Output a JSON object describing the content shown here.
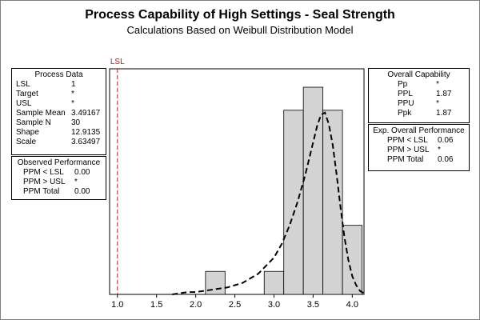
{
  "title": "Process Capability of High Settings - Seal Strength",
  "subtitle": "Calculations Based on Weibull Distribution Model",
  "process_data": {
    "title": "Process Data",
    "rows": [
      {
        "label": "LSL",
        "value": "1"
      },
      {
        "label": "Target",
        "value": "*"
      },
      {
        "label": "USL",
        "value": "*"
      },
      {
        "label": "Sample Mean",
        "value": "3.49167"
      },
      {
        "label": "Sample N",
        "value": "30"
      },
      {
        "label": "Shape",
        "value": "12.9135"
      },
      {
        "label": "Scale",
        "value": "3.63497"
      }
    ]
  },
  "observed_performance": {
    "title": "Observed Performance",
    "rows": [
      {
        "label": "PPM < LSL",
        "value": "0.00"
      },
      {
        "label": "PPM > USL",
        "value": "*"
      },
      {
        "label": "PPM Total",
        "value": "0.00"
      }
    ]
  },
  "overall_capability": {
    "title": "Overall Capability",
    "rows": [
      {
        "label": "Pp",
        "value": "*"
      },
      {
        "label": "PPL",
        "value": "1.87"
      },
      {
        "label": "PPU",
        "value": "*"
      },
      {
        "label": "Ppk",
        "value": "1.87"
      }
    ]
  },
  "exp_overall_performance": {
    "title": "Exp. Overall Performance",
    "rows": [
      {
        "label": "PPM < LSL",
        "value": "0.06"
      },
      {
        "label": "PPM > USL",
        "value": "*"
      },
      {
        "label": "PPM Total",
        "value": "0.06"
      }
    ]
  },
  "chart_data": {
    "type": "bar",
    "title": "Process Capability of High Settings - Seal Strength",
    "subtitle": "Calculations Based on Weibull Distribution Model",
    "xlim": [
      0.9,
      4.15
    ],
    "ylim": [
      0,
      9.8
    ],
    "xticks": [
      "1.0",
      "1.5",
      "2.0",
      "2.5",
      "3.0",
      "3.5",
      "4.0"
    ],
    "tick_values": [
      1.0,
      1.5,
      2.0,
      2.5,
      3.0,
      3.5,
      4.0
    ],
    "bin_width": 0.25,
    "histogram": [
      {
        "x": 2.25,
        "count": 1
      },
      {
        "x": 3.0,
        "count": 1
      },
      {
        "x": 3.25,
        "count": 8
      },
      {
        "x": 3.5,
        "count": 9
      },
      {
        "x": 3.75,
        "count": 8
      },
      {
        "x": 4.0,
        "count": 3
      }
    ],
    "fitted_curve": {
      "distribution": "Weibull",
      "shape": 12.9135,
      "scale": 3.63497,
      "line_style": "dashed",
      "points": [
        [
          1.7,
          0.0
        ],
        [
          1.9,
          0.1
        ],
        [
          2.0,
          0.1
        ],
        [
          2.2,
          0.2
        ],
        [
          2.4,
          0.3
        ],
        [
          2.6,
          0.5
        ],
        [
          2.8,
          0.9
        ],
        [
          3.0,
          1.6
        ],
        [
          3.1,
          2.2
        ],
        [
          3.2,
          3.0
        ],
        [
          3.3,
          4.0
        ],
        [
          3.4,
          5.2
        ],
        [
          3.5,
          6.6
        ],
        [
          3.55,
          7.3
        ],
        [
          3.6,
          7.8
        ],
        [
          3.65,
          7.9
        ],
        [
          3.7,
          7.4
        ],
        [
          3.75,
          6.5
        ],
        [
          3.8,
          5.2
        ],
        [
          3.85,
          3.8
        ],
        [
          3.9,
          2.5
        ],
        [
          3.95,
          1.5
        ],
        [
          4.0,
          0.8
        ],
        [
          4.05,
          0.4
        ],
        [
          4.1,
          0.15
        ],
        [
          4.15,
          0.05
        ]
      ]
    },
    "lsl": {
      "label": "LSL",
      "value": 1.0,
      "color": "#b22222"
    },
    "bar_color": "#d3d3d3"
  }
}
